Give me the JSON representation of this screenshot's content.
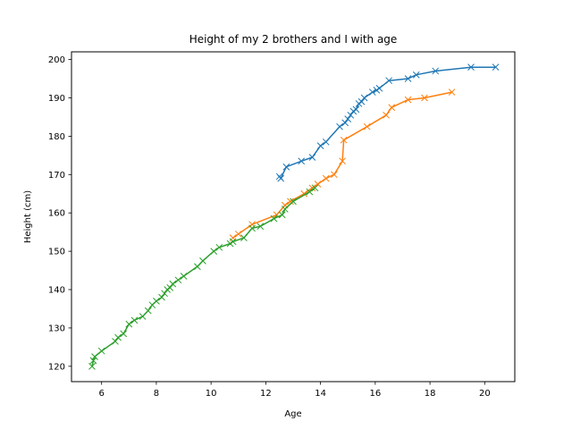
{
  "chart_data": {
    "type": "line",
    "title": "Height of my 2 brothers and I with age",
    "xlabel": "Age",
    "ylabel": "Height (cm)",
    "xlim": [
      4.9,
      21.1
    ],
    "ylim": [
      116,
      202
    ],
    "xticks": [
      6,
      8,
      10,
      12,
      14,
      16,
      18,
      20
    ],
    "yticks": [
      120,
      130,
      140,
      150,
      160,
      170,
      180,
      190,
      200
    ],
    "grid": false,
    "legend": "none",
    "marker": "x",
    "series": [
      {
        "color": "#1f77b4",
        "x": [
          12.5,
          12.55,
          12.75,
          13.3,
          13.7,
          14.0,
          14.2,
          14.7,
          14.9,
          15.0,
          15.1,
          15.2,
          15.3,
          15.4,
          15.5,
          15.6,
          15.9,
          16.05,
          16.15,
          16.5,
          17.2,
          17.5,
          18.2,
          19.5,
          20.4
        ],
        "y": [
          169.5,
          169.0,
          172.0,
          173.5,
          174.5,
          177.5,
          178.5,
          182.5,
          183.5,
          184.5,
          185.5,
          186.5,
          187.0,
          188.5,
          189.0,
          190.0,
          191.5,
          192.0,
          192.5,
          194.5,
          195.0,
          196.0,
          197.0,
          198.0,
          198.0
        ]
      },
      {
        "color": "#ff7f0e",
        "x": [
          10.8,
          11.0,
          11.5,
          12.4,
          12.7,
          12.9,
          13.4,
          13.7,
          13.9,
          14.2,
          14.5,
          14.8,
          14.85,
          15.7,
          16.4,
          16.6,
          17.2,
          17.8,
          18.8
        ],
        "y": [
          153.5,
          154.5,
          157.0,
          159.5,
          162.0,
          163.0,
          165.0,
          166.5,
          167.5,
          169.0,
          170.0,
          173.5,
          179.0,
          182.5,
          185.5,
          187.5,
          189.5,
          190.0,
          191.5
        ]
      },
      {
        "color": "#2ca02c",
        "x": [
          5.65,
          5.7,
          5.75,
          6.0,
          6.5,
          6.6,
          6.8,
          7.0,
          7.2,
          7.5,
          7.7,
          7.85,
          8.0,
          8.2,
          8.3,
          8.4,
          8.5,
          8.6,
          8.8,
          9.0,
          9.5,
          9.7,
          10.1,
          10.3,
          10.7,
          10.8,
          11.2,
          11.5,
          11.8,
          12.3,
          12.6,
          12.7,
          13.0,
          13.6,
          13.8
        ],
        "y": [
          120.0,
          121.5,
          122.5,
          124.0,
          126.5,
          127.5,
          128.5,
          131.0,
          132.0,
          133.0,
          134.5,
          136.0,
          137.0,
          138.0,
          139.0,
          140.0,
          140.5,
          141.5,
          142.5,
          143.5,
          146.0,
          147.5,
          150.0,
          151.0,
          152.0,
          152.5,
          153.5,
          156.0,
          156.5,
          158.5,
          159.5,
          161.0,
          163.0,
          165.5,
          166.5
        ]
      }
    ]
  }
}
